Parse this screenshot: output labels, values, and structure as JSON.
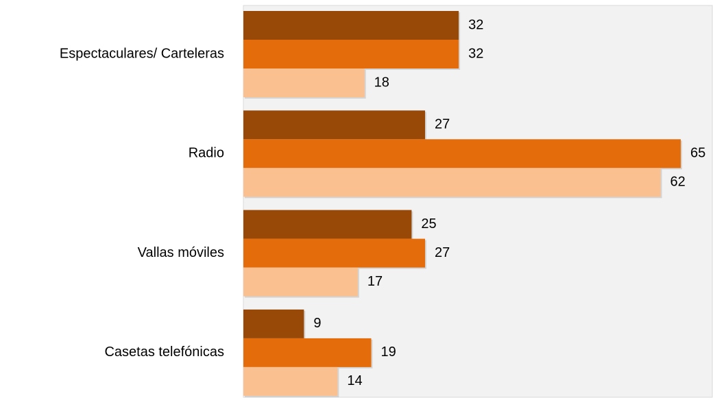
{
  "chart_data": {
    "type": "bar",
    "orientation": "horizontal",
    "categories": [
      "Espectaculares/ Carteleras",
      "Radio",
      "Vallas móviles",
      "Casetas telefónicas"
    ],
    "series": [
      {
        "color": "#984807",
        "values": [
          32,
          27,
          25,
          9
        ]
      },
      {
        "color": "#e46c0a",
        "values": [
          32,
          65,
          27,
          19
        ]
      },
      {
        "color": "#fac090",
        "values": [
          18,
          62,
          17,
          14
        ]
      }
    ]
  }
}
